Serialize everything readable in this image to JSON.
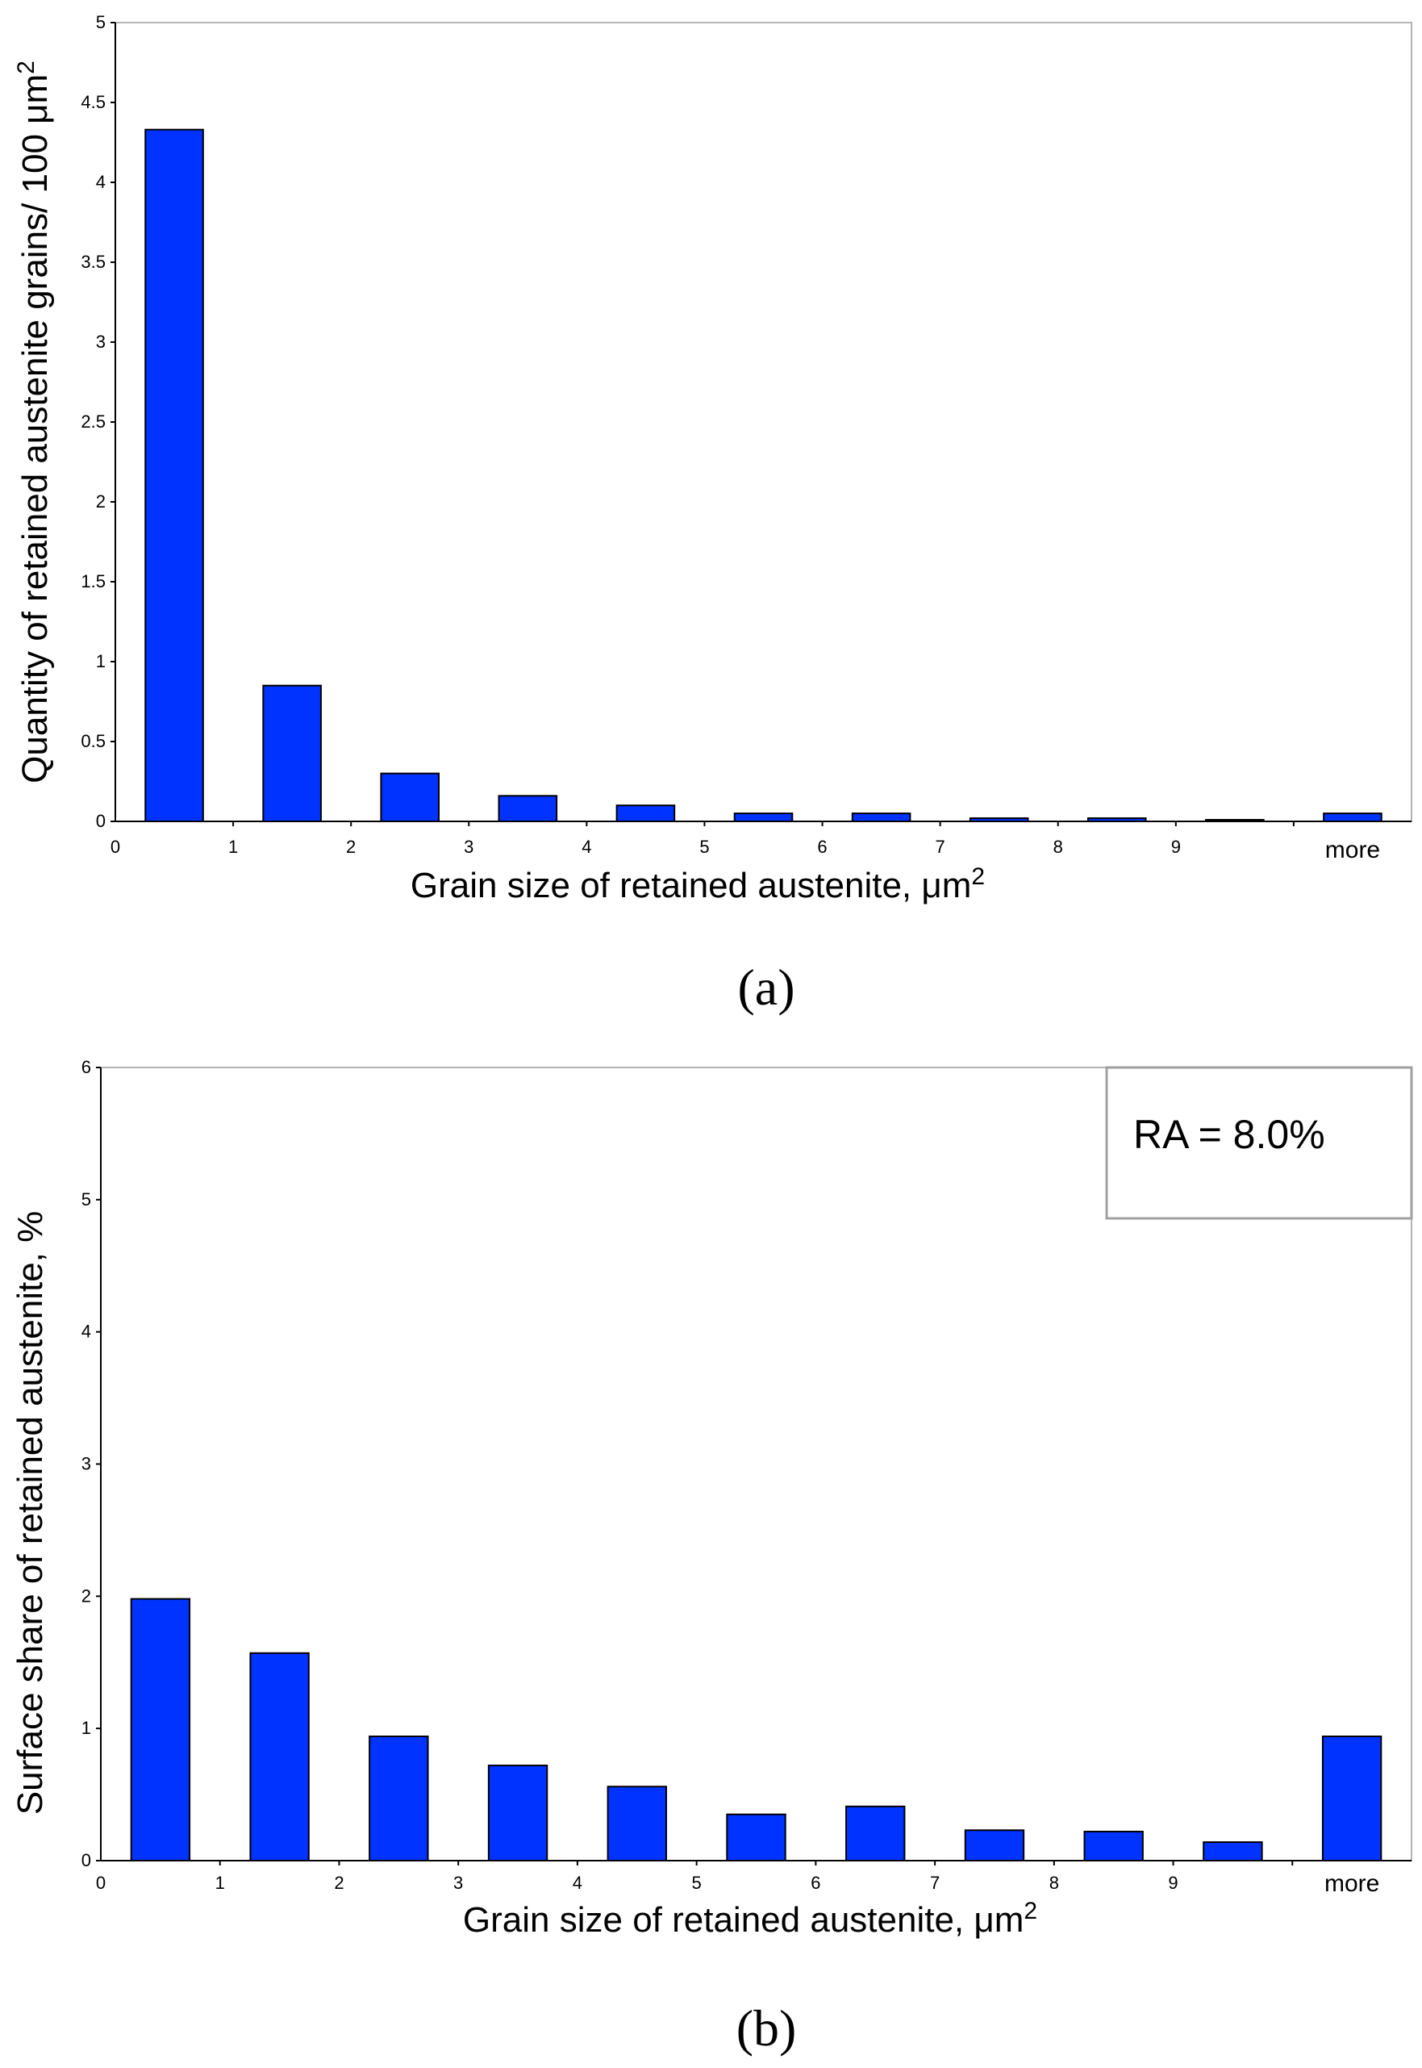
{
  "chart_data": [
    {
      "type": "bar",
      "panel_label": "(a)",
      "categories": [
        "0",
        "1",
        "2",
        "3",
        "4",
        "5",
        "6",
        "7",
        "8",
        "9",
        "more"
      ],
      "values": [
        4.33,
        0.85,
        0.3,
        0.16,
        0.1,
        0.05,
        0.05,
        0.02,
        0.02,
        0.01,
        0.05
      ],
      "xticks": [
        "0",
        "1",
        "2",
        "3",
        "4",
        "5",
        "6",
        "7",
        "8",
        "9",
        "more"
      ],
      "yticks": [
        "0",
        "0.5",
        "1",
        "1.5",
        "2",
        "2.5",
        "3",
        "3.5",
        "4",
        "4.5",
        "5"
      ],
      "ylim": [
        0,
        5
      ],
      "xlabel": "Grain size of retained austenite, μm",
      "xlabel_sup": "2",
      "ylabel": "Quantity of retained austenite grains/ 100 μm",
      "ylabel_sup": "2",
      "bar_color": "#0033ff"
    },
    {
      "type": "bar",
      "panel_label": "(b)",
      "categories": [
        "0",
        "1",
        "2",
        "3",
        "4",
        "5",
        "6",
        "7",
        "8",
        "9",
        "more"
      ],
      "values": [
        1.98,
        1.57,
        0.94,
        0.72,
        0.56,
        0.35,
        0.41,
        0.23,
        0.22,
        0.14,
        0.94
      ],
      "xticks": [
        "0",
        "1",
        "2",
        "3",
        "4",
        "5",
        "6",
        "7",
        "8",
        "9",
        "more"
      ],
      "yticks": [
        "0",
        "1",
        "2",
        "3",
        "4",
        "5",
        "6"
      ],
      "ylim": [
        0,
        6
      ],
      "xlabel": "Grain size of retained austenite, μm",
      "xlabel_sup": "2",
      "ylabel": "Surface share of retained austenite, %",
      "annotation": "RA = 8.0%",
      "bar_color": "#0033ff"
    }
  ]
}
